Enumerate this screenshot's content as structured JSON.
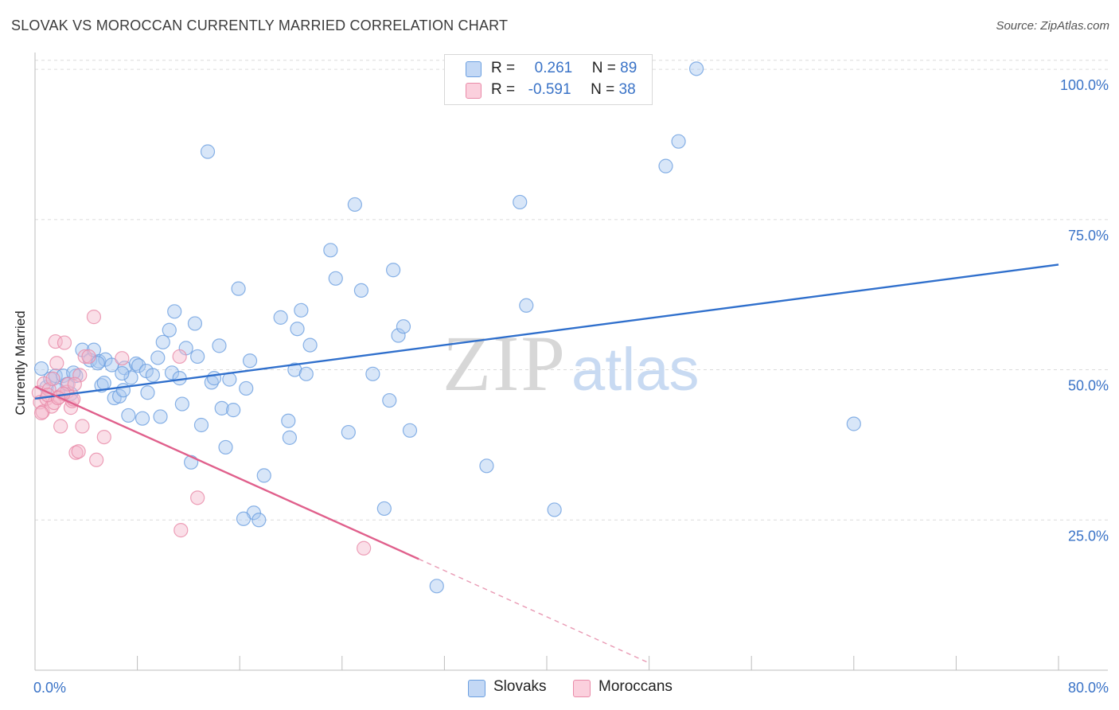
{
  "header": {
    "title": "SLOVAK VS MOROCCAN CURRENTLY MARRIED CORRELATION CHART",
    "source": "Source: ZipAtlas.com"
  },
  "watermark": {
    "zip": "ZIP",
    "atlas": "atlas"
  },
  "legend": {
    "rows": [
      {
        "r_label": "R =",
        "r_value": "0.261",
        "n_label": "N =",
        "n_value": "89",
        "color": "#a9c8f0"
      },
      {
        "r_label": "R =",
        "r_value": "-0.591",
        "n_label": "N =",
        "n_value": "38",
        "color": "#f5b8cb"
      }
    ]
  },
  "bottom_legend": [
    {
      "label": "Slovaks",
      "color": "#a9c8f0"
    },
    {
      "label": "Moroccans",
      "color": "#f5b8cb"
    }
  ],
  "chart_data": {
    "type": "scatter",
    "title": "SLOVAK VS MOROCCAN CURRENTLY MARRIED CORRELATION CHART",
    "xlabel": "",
    "ylabel": "Currently Married",
    "xlim": [
      0,
      80
    ],
    "ylim": [
      0,
      102
    ],
    "x_tick_labels": [
      "0.0%",
      "80.0%"
    ],
    "y_tick_labels": [
      {
        "value": 100,
        "label": "100.0%"
      },
      {
        "value": 75,
        "label": "75.0%"
      },
      {
        "value": 50,
        "label": "50.0%"
      },
      {
        "value": 25,
        "label": "25.0%"
      }
    ],
    "grid": true,
    "series": [
      {
        "name": "Slovaks",
        "color": "#6b9fe0",
        "fill": "#a9c8f0",
        "r": 0.261,
        "n": 89,
        "trend": {
          "x0": 0,
          "y0": 45.2,
          "x1": 80,
          "y1": 67.5
        },
        "points": [
          [
            0.5,
            50.2
          ],
          [
            0.9,
            47.1
          ],
          [
            1.2,
            48.5
          ],
          [
            1.6,
            49.0
          ],
          [
            2.2,
            49.0
          ],
          [
            2.5,
            47.6
          ],
          [
            2.8,
            46.0
          ],
          [
            3.2,
            49.0
          ],
          [
            3.7,
            53.3
          ],
          [
            4.3,
            51.6
          ],
          [
            4.6,
            53.3
          ],
          [
            5.0,
            51.4
          ],
          [
            5.2,
            47.4
          ],
          [
            5.4,
            47.8
          ],
          [
            5.5,
            51.7
          ],
          [
            6.0,
            50.8
          ],
          [
            6.2,
            45.3
          ],
          [
            6.6,
            45.6
          ],
          [
            6.9,
            46.6
          ],
          [
            7.0,
            50.3
          ],
          [
            7.3,
            42.4
          ],
          [
            7.5,
            48.7
          ],
          [
            7.9,
            51.0
          ],
          [
            8.1,
            50.7
          ],
          [
            8.4,
            41.9
          ],
          [
            8.7,
            49.8
          ],
          [
            8.8,
            46.2
          ],
          [
            9.2,
            49.1
          ],
          [
            9.6,
            52.0
          ],
          [
            9.8,
            42.2
          ],
          [
            10.0,
            54.6
          ],
          [
            10.5,
            56.6
          ],
          [
            10.7,
            49.5
          ],
          [
            10.9,
            59.7
          ],
          [
            11.3,
            48.6
          ],
          [
            11.5,
            44.3
          ],
          [
            11.8,
            53.6
          ],
          [
            12.2,
            34.6
          ],
          [
            12.5,
            57.7
          ],
          [
            12.7,
            52.2
          ],
          [
            13.0,
            40.8
          ],
          [
            13.5,
            86.3
          ],
          [
            13.8,
            47.9
          ],
          [
            14.0,
            48.6
          ],
          [
            14.4,
            54.0
          ],
          [
            14.6,
            43.6
          ],
          [
            14.9,
            37.1
          ],
          [
            15.2,
            48.4
          ],
          [
            15.5,
            43.3
          ],
          [
            15.9,
            63.5
          ],
          [
            16.5,
            46.9
          ],
          [
            16.8,
            51.5
          ],
          [
            17.1,
            26.2
          ],
          [
            17.5,
            25.0
          ],
          [
            17.9,
            32.4
          ],
          [
            16.3,
            25.2
          ],
          [
            19.2,
            58.7
          ],
          [
            19.8,
            41.5
          ],
          [
            19.9,
            38.7
          ],
          [
            20.5,
            56.8
          ],
          [
            20.8,
            59.9
          ],
          [
            20.3,
            50.0
          ],
          [
            21.2,
            49.3
          ],
          [
            21.5,
            54.1
          ],
          [
            23.1,
            69.9
          ],
          [
            23.5,
            65.2
          ],
          [
            24.5,
            39.6
          ],
          [
            25.0,
            77.5
          ],
          [
            25.5,
            63.2
          ],
          [
            26.4,
            49.3
          ],
          [
            27.3,
            26.9
          ],
          [
            27.7,
            44.9
          ],
          [
            28.0,
            66.6
          ],
          [
            28.4,
            55.7
          ],
          [
            28.8,
            57.2
          ],
          [
            29.3,
            39.9
          ],
          [
            31.4,
            14.0
          ],
          [
            35.3,
            34.0
          ],
          [
            37.9,
            77.9
          ],
          [
            38.4,
            60.7
          ],
          [
            40.6,
            26.7
          ],
          [
            49.3,
            83.9
          ],
          [
            50.3,
            88.0
          ],
          [
            51.7,
            100.1
          ],
          [
            64.0,
            41.0
          ],
          [
            3.0,
            49.5
          ],
          [
            6.8,
            49.4
          ],
          [
            1.8,
            46.6
          ],
          [
            4.9,
            51.1
          ]
        ]
      },
      {
        "name": "Moroccans",
        "color": "#e98aa8",
        "fill": "#f5b8cb",
        "r": -0.591,
        "n": 38,
        "trend": {
          "x0": 0,
          "y0": 47.2,
          "x1": 30,
          "y1": 18.5,
          "dash_x1": 48,
          "dash_y1": 1.2
        },
        "points": [
          [
            0.3,
            46.2
          ],
          [
            0.4,
            44.6
          ],
          [
            0.6,
            43.0
          ],
          [
            0.7,
            47.7
          ],
          [
            0.9,
            45.2
          ],
          [
            1.1,
            46.7
          ],
          [
            1.3,
            43.9
          ],
          [
            1.4,
            48.5
          ],
          [
            1.5,
            44.5
          ],
          [
            1.6,
            54.7
          ],
          [
            1.7,
            51.1
          ],
          [
            1.9,
            45.5
          ],
          [
            2.0,
            40.6
          ],
          [
            2.3,
            54.5
          ],
          [
            2.5,
            46.3
          ],
          [
            2.6,
            47.6
          ],
          [
            2.8,
            43.7
          ],
          [
            2.9,
            44.8
          ],
          [
            3.0,
            45.1
          ],
          [
            3.2,
            36.2
          ],
          [
            3.4,
            36.4
          ],
          [
            3.5,
            49.1
          ],
          [
            3.7,
            40.6
          ],
          [
            3.9,
            52.2
          ],
          [
            4.2,
            52.2
          ],
          [
            4.6,
            58.8
          ],
          [
            4.8,
            35.0
          ],
          [
            5.4,
            38.8
          ],
          [
            6.8,
            51.9
          ],
          [
            11.3,
            52.2
          ],
          [
            12.7,
            28.7
          ],
          [
            11.4,
            23.3
          ],
          [
            25.7,
            20.3
          ],
          [
            1.0,
            45.8
          ],
          [
            2.2,
            46.0
          ],
          [
            0.5,
            42.8
          ],
          [
            3.1,
            47.6
          ],
          [
            1.8,
            45.3
          ]
        ]
      }
    ]
  }
}
